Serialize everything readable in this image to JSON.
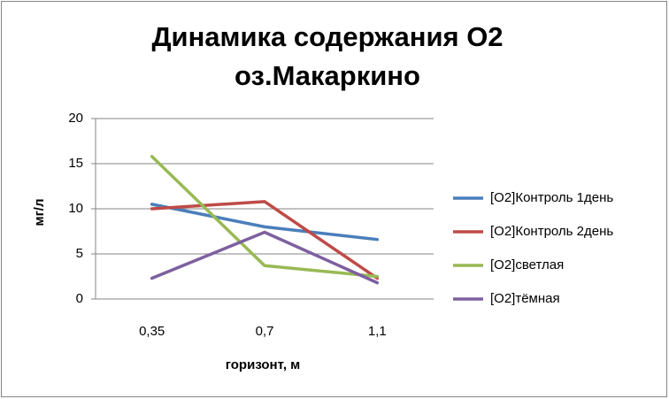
{
  "chart_data": {
    "type": "line",
    "title": "Динамика содержания О2 оз.Макаркино",
    "x_label": "горизонт, м",
    "y_label": "мг/л",
    "categories": [
      "0,35",
      "0,7",
      "1,1"
    ],
    "series": [
      {
        "name": "[O2]Контроль 1день",
        "color": "#4a7ebb",
        "values": [
          10.5,
          8,
          6.6
        ]
      },
      {
        "name": "[O2]Контроль 2день",
        "color": "#be4b48",
        "values": [
          10,
          10.8,
          2.3
        ]
      },
      {
        "name": "[O2]светлая",
        "color": "#98b954",
        "values": [
          15.8,
          3.7,
          2.5
        ]
      },
      {
        "name": "[O2]тёмная",
        "color": "#7d60a0",
        "values": [
          2.3,
          7.4,
          1.8
        ]
      }
    ],
    "ylim": [
      0,
      20
    ],
    "yticks": [
      0,
      5,
      10,
      15,
      20
    ],
    "grid": true,
    "legend": "right"
  }
}
